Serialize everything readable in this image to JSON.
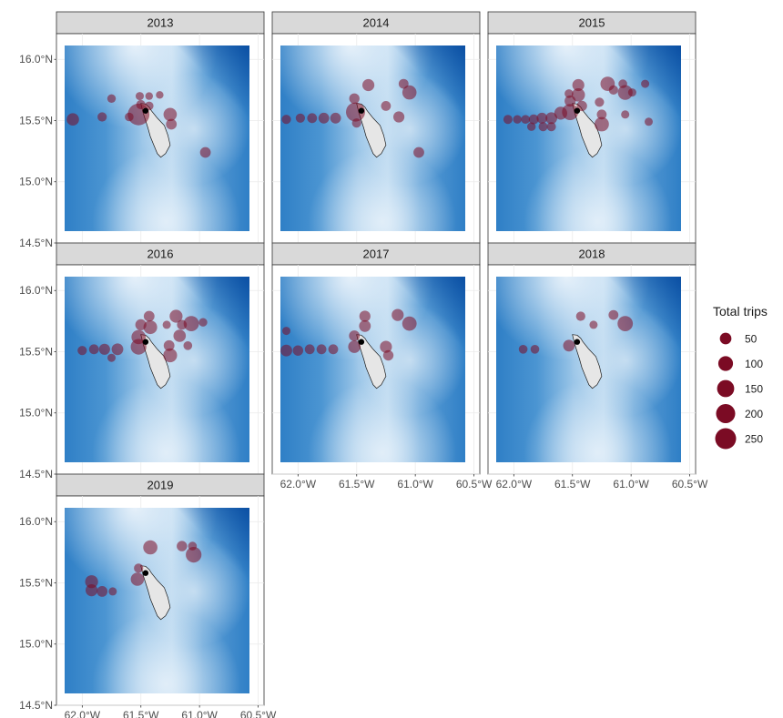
{
  "chart_data": {
    "type": "scatter",
    "facet_var": "year",
    "facet_layout": {
      "columns": 3,
      "rows": 3
    },
    "x_ticks": [
      {
        "value": -62.0,
        "label": "62.0°W"
      },
      {
        "value": -61.5,
        "label": "61.5°W"
      },
      {
        "value": -61.0,
        "label": "61.0°W"
      },
      {
        "value": -60.5,
        "label": "60.5°W"
      }
    ],
    "y_ticks": [
      {
        "value": 16.0,
        "label": "16.0°N"
      },
      {
        "value": 15.5,
        "label": "15.5°N"
      },
      {
        "value": 15.0,
        "label": "15.0°N"
      },
      {
        "value": 14.5,
        "label": "14.5°N"
      }
    ],
    "xlim": [
      -62.22,
      -60.45
    ],
    "ylim": [
      14.5,
      16.21
    ],
    "grid": true,
    "size_legend": {
      "title": "Total trips",
      "breaks": [
        50,
        100,
        150,
        200,
        250
      ],
      "placement": "right",
      "color": "#7b0b24"
    },
    "colors": {
      "point_fill": "#7b0b24",
      "port_marker": "#000000",
      "island_fill": "#e6e6e6",
      "strip_bg": "#d9d9d9",
      "deep_water": "#2d7fc8",
      "shallow_water": "#cfe5f5"
    },
    "port": {
      "lon": -61.46,
      "lat": 15.58
    },
    "panels": [
      {
        "year": "2013",
        "points": [
          {
            "lon": -62.08,
            "lat": 15.51,
            "trips": 60
          },
          {
            "lon": -61.83,
            "lat": 15.53,
            "trips": 25
          },
          {
            "lon": -61.75,
            "lat": 15.68,
            "trips": 18
          },
          {
            "lon": -61.6,
            "lat": 15.53,
            "trips": 20
          },
          {
            "lon": -61.52,
            "lat": 15.55,
            "trips": 270
          },
          {
            "lon": -61.5,
            "lat": 15.63,
            "trips": 25
          },
          {
            "lon": -61.51,
            "lat": 15.7,
            "trips": 15
          },
          {
            "lon": -61.43,
            "lat": 15.7,
            "trips": 12
          },
          {
            "lon": -61.34,
            "lat": 15.71,
            "trips": 12
          },
          {
            "lon": -61.43,
            "lat": 15.62,
            "trips": 20
          },
          {
            "lon": -61.25,
            "lat": 15.55,
            "trips": 75
          },
          {
            "lon": -61.24,
            "lat": 15.47,
            "trips": 40
          },
          {
            "lon": -60.95,
            "lat": 15.24,
            "trips": 40
          }
        ]
      },
      {
        "year": "2014",
        "points": [
          {
            "lon": -62.1,
            "lat": 15.51,
            "trips": 25
          },
          {
            "lon": -61.98,
            "lat": 15.52,
            "trips": 25
          },
          {
            "lon": -61.88,
            "lat": 15.52,
            "trips": 30
          },
          {
            "lon": -61.78,
            "lat": 15.52,
            "trips": 40
          },
          {
            "lon": -61.68,
            "lat": 15.52,
            "trips": 40
          },
          {
            "lon": -61.51,
            "lat": 15.57,
            "trips": 200
          },
          {
            "lon": -61.52,
            "lat": 15.68,
            "trips": 35
          },
          {
            "lon": -61.5,
            "lat": 15.48,
            "trips": 25
          },
          {
            "lon": -61.4,
            "lat": 15.79,
            "trips": 55
          },
          {
            "lon": -61.25,
            "lat": 15.62,
            "trips": 30
          },
          {
            "lon": -61.14,
            "lat": 15.53,
            "trips": 45
          },
          {
            "lon": -61.05,
            "lat": 15.73,
            "trips": 90
          },
          {
            "lon": -61.1,
            "lat": 15.8,
            "trips": 30
          },
          {
            "lon": -60.97,
            "lat": 15.24,
            "trips": 40
          }
        ]
      },
      {
        "year": "2015",
        "points": [
          {
            "lon": -62.05,
            "lat": 15.51,
            "trips": 22
          },
          {
            "lon": -61.97,
            "lat": 15.51,
            "trips": 18
          },
          {
            "lon": -61.9,
            "lat": 15.51,
            "trips": 20
          },
          {
            "lon": -61.83,
            "lat": 15.51,
            "trips": 30
          },
          {
            "lon": -61.76,
            "lat": 15.52,
            "trips": 40
          },
          {
            "lon": -61.68,
            "lat": 15.52,
            "trips": 50
          },
          {
            "lon": -61.6,
            "lat": 15.56,
            "trips": 70
          },
          {
            "lon": -61.52,
            "lat": 15.57,
            "trips": 130
          },
          {
            "lon": -61.52,
            "lat": 15.66,
            "trips": 45
          },
          {
            "lon": -61.53,
            "lat": 15.72,
            "trips": 20
          },
          {
            "lon": -61.45,
            "lat": 15.79,
            "trips": 55
          },
          {
            "lon": -61.45,
            "lat": 15.71,
            "trips": 75
          },
          {
            "lon": -61.42,
            "lat": 15.62,
            "trips": 35
          },
          {
            "lon": -61.85,
            "lat": 15.45,
            "trips": 18
          },
          {
            "lon": -61.75,
            "lat": 15.45,
            "trips": 22
          },
          {
            "lon": -61.68,
            "lat": 15.45,
            "trips": 22
          },
          {
            "lon": -61.2,
            "lat": 15.8,
            "trips": 95
          },
          {
            "lon": -61.05,
            "lat": 15.73,
            "trips": 100
          },
          {
            "lon": -61.27,
            "lat": 15.65,
            "trips": 25
          },
          {
            "lon": -61.25,
            "lat": 15.55,
            "trips": 30
          },
          {
            "lon": -61.25,
            "lat": 15.47,
            "trips": 95
          },
          {
            "lon": -61.15,
            "lat": 15.75,
            "trips": 25
          },
          {
            "lon": -61.07,
            "lat": 15.8,
            "trips": 20
          },
          {
            "lon": -60.99,
            "lat": 15.73,
            "trips": 15
          },
          {
            "lon": -60.88,
            "lat": 15.8,
            "trips": 15
          },
          {
            "lon": -61.05,
            "lat": 15.55,
            "trips": 15
          },
          {
            "lon": -60.85,
            "lat": 15.49,
            "trips": 15
          }
        ]
      },
      {
        "year": "2016",
        "points": [
          {
            "lon": -62.0,
            "lat": 15.51,
            "trips": 25
          },
          {
            "lon": -61.9,
            "lat": 15.52,
            "trips": 30
          },
          {
            "lon": -61.81,
            "lat": 15.52,
            "trips": 45
          },
          {
            "lon": -61.7,
            "lat": 15.52,
            "trips": 50
          },
          {
            "lon": -61.75,
            "lat": 15.45,
            "trips": 15
          },
          {
            "lon": -61.52,
            "lat": 15.54,
            "trips": 120
          },
          {
            "lon": -61.52,
            "lat": 15.62,
            "trips": 90
          },
          {
            "lon": -61.5,
            "lat": 15.72,
            "trips": 45
          },
          {
            "lon": -61.43,
            "lat": 15.79,
            "trips": 40
          },
          {
            "lon": -61.42,
            "lat": 15.7,
            "trips": 80
          },
          {
            "lon": -61.26,
            "lat": 15.55,
            "trips": 40
          },
          {
            "lon": -61.25,
            "lat": 15.47,
            "trips": 85
          },
          {
            "lon": -61.2,
            "lat": 15.79,
            "trips": 70
          },
          {
            "lon": -61.17,
            "lat": 15.63,
            "trips": 60
          },
          {
            "lon": -61.07,
            "lat": 15.73,
            "trips": 110
          },
          {
            "lon": -61.15,
            "lat": 15.72,
            "trips": 30
          },
          {
            "lon": -61.1,
            "lat": 15.55,
            "trips": 20
          },
          {
            "lon": -60.97,
            "lat": 15.74,
            "trips": 18
          },
          {
            "lon": -61.28,
            "lat": 15.72,
            "trips": 15
          }
        ]
      },
      {
        "year": "2017",
        "points": [
          {
            "lon": -62.1,
            "lat": 15.67,
            "trips": 15
          },
          {
            "lon": -62.1,
            "lat": 15.51,
            "trips": 50
          },
          {
            "lon": -62.0,
            "lat": 15.51,
            "trips": 35
          },
          {
            "lon": -61.9,
            "lat": 15.52,
            "trips": 30
          },
          {
            "lon": -61.8,
            "lat": 15.52,
            "trips": 30
          },
          {
            "lon": -61.7,
            "lat": 15.52,
            "trips": 30
          },
          {
            "lon": -61.52,
            "lat": 15.63,
            "trips": 40
          },
          {
            "lon": -61.52,
            "lat": 15.54,
            "trips": 60
          },
          {
            "lon": -61.43,
            "lat": 15.79,
            "trips": 45
          },
          {
            "lon": -61.43,
            "lat": 15.71,
            "trips": 50
          },
          {
            "lon": -61.25,
            "lat": 15.54,
            "trips": 55
          },
          {
            "lon": -61.23,
            "lat": 15.47,
            "trips": 35
          },
          {
            "lon": -61.15,
            "lat": 15.8,
            "trips": 55
          },
          {
            "lon": -61.05,
            "lat": 15.73,
            "trips": 95
          }
        ]
      },
      {
        "year": "2018",
        "points": [
          {
            "lon": -61.92,
            "lat": 15.52,
            "trips": 20
          },
          {
            "lon": -61.82,
            "lat": 15.52,
            "trips": 20
          },
          {
            "lon": -61.53,
            "lat": 15.55,
            "trips": 50
          },
          {
            "lon": -61.43,
            "lat": 15.79,
            "trips": 25
          },
          {
            "lon": -61.32,
            "lat": 15.72,
            "trips": 15
          },
          {
            "lon": -61.15,
            "lat": 15.8,
            "trips": 30
          },
          {
            "lon": -61.05,
            "lat": 15.73,
            "trips": 110
          }
        ]
      },
      {
        "year": "2019",
        "points": [
          {
            "lon": -61.92,
            "lat": 15.51,
            "trips": 70
          },
          {
            "lon": -61.92,
            "lat": 15.44,
            "trips": 55
          },
          {
            "lon": -61.83,
            "lat": 15.43,
            "trips": 40
          },
          {
            "lon": -61.74,
            "lat": 15.43,
            "trips": 15
          },
          {
            "lon": -61.52,
            "lat": 15.62,
            "trips": 25
          },
          {
            "lon": -61.53,
            "lat": 15.53,
            "trips": 75
          },
          {
            "lon": -61.42,
            "lat": 15.79,
            "trips": 90
          },
          {
            "lon": -61.15,
            "lat": 15.8,
            "trips": 35
          },
          {
            "lon": -61.06,
            "lat": 15.8,
            "trips": 20
          },
          {
            "lon": -61.05,
            "lat": 15.73,
            "trips": 120
          }
        ]
      }
    ]
  }
}
